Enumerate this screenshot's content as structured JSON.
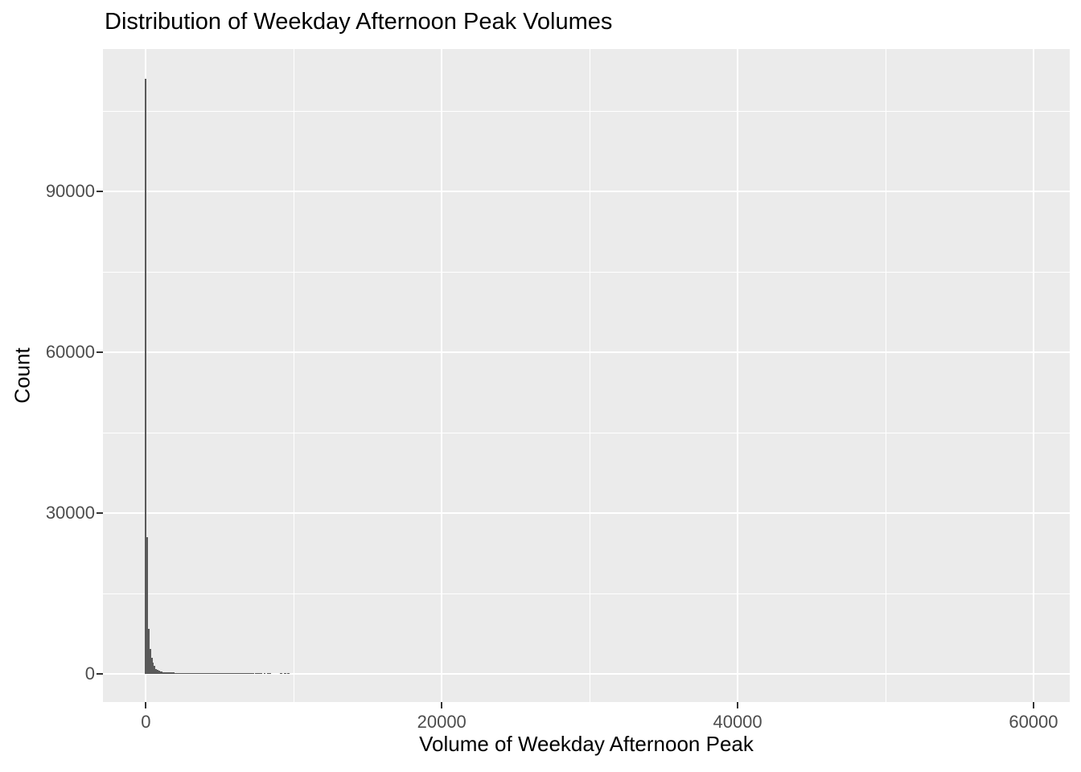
{
  "title": "Distribution of Weekday Afternoon Peak Volumes",
  "chart_data": {
    "type": "histogram",
    "title": "Distribution of Weekday Afternoon Peak Volumes",
    "xlabel": "Volume of Weekday Afternoon Peak",
    "ylabel": "Count",
    "x_ticks": [
      0,
      20000,
      40000,
      60000
    ],
    "x_minor_gridlines": [
      10000,
      30000,
      50000
    ],
    "y_ticks": [
      0,
      30000,
      60000,
      90000
    ],
    "y_minor_gridlines": [
      15000,
      45000,
      75000,
      105000
    ],
    "xlim": [
      -2900,
      62450
    ],
    "ylim": [
      -5250,
      116550
    ],
    "grid": true,
    "legend": "none",
    "binwidth": 100,
    "colors": {
      "bar": "#595959",
      "panel_bg": "#EBEBEB",
      "grid": "#FFFFFF",
      "tick_label": "#4D4D4D",
      "tick_mark": "#333333",
      "title": "#000000",
      "page_bg": "#FFFFFF"
    },
    "bins": [
      [
        -50,
        111000
      ],
      [
        50,
        25500
      ],
      [
        150,
        8400
      ],
      [
        250,
        4700
      ],
      [
        350,
        2950
      ],
      [
        450,
        2050
      ],
      [
        550,
        1450
      ],
      [
        650,
        950
      ],
      [
        750,
        700
      ],
      [
        850,
        560
      ],
      [
        950,
        470
      ],
      [
        1050,
        400
      ],
      [
        1150,
        350
      ],
      [
        1250,
        320
      ],
      [
        1350,
        300
      ],
      [
        1450,
        285
      ],
      [
        1550,
        270
      ],
      [
        1650,
        255
      ],
      [
        1750,
        240
      ],
      [
        1850,
        230
      ],
      [
        1950,
        220
      ],
      [
        2050,
        210
      ]
    ],
    "tail_segments": [
      [
        2150,
        4500,
        195
      ],
      [
        4500,
        7300,
        160
      ]
    ],
    "sparse_segments": [
      [
        7400,
        7850,
        170
      ],
      [
        7950,
        8100,
        170
      ],
      [
        8200,
        8450,
        170
      ],
      [
        9080,
        9250,
        150
      ],
      [
        9350,
        9480,
        150
      ],
      [
        9570,
        9730,
        150
      ]
    ]
  }
}
